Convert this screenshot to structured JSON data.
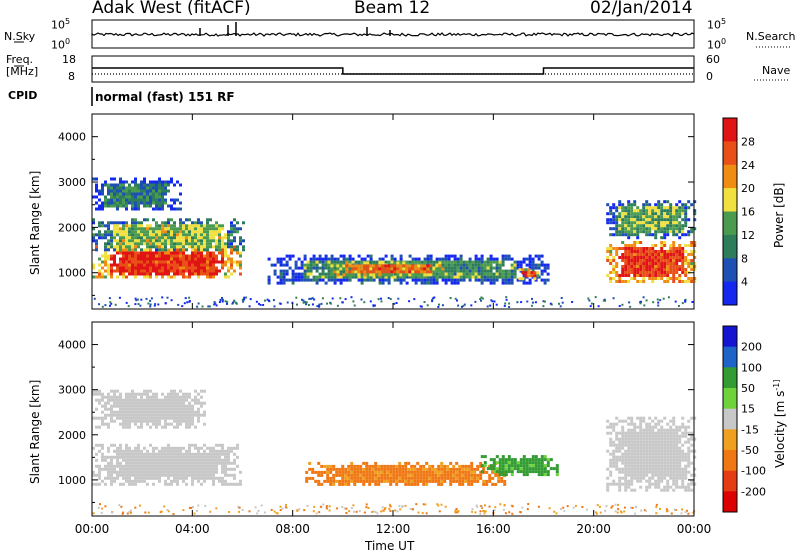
{
  "header": {
    "site": "Adak West (fitACF)",
    "beam": "Beam 12",
    "date": "02/Jan/2014"
  },
  "top_panels": {
    "nsky_label": "N.Sky",
    "nsky_top_tick": "10^5",
    "nsky_bottom_tick": "10^0",
    "nsearch_label": "N.Search",
    "nsearch_top_tick": "10^5",
    "nsearch_bottom_tick": "10^0",
    "freq_label": "Freq.",
    "freq_unit": "[MHz]",
    "freq_ticks": [
      "18",
      "8"
    ],
    "nave_label": "Nave",
    "nave_ticks": [
      "60",
      "0"
    ],
    "cpid_label": "CPID",
    "cpid_text": "normal (fast) 151 RF"
  },
  "chart_data": [
    {
      "type": "heatmap",
      "name": "power",
      "ylabel": "Slant Range [km]",
      "yticks": [
        "1000",
        "2000",
        "3000",
        "4000"
      ],
      "ylim": [
        200,
        4500
      ],
      "xlim": [
        0,
        24
      ],
      "colorbar_label": "Power [dB]",
      "colorbar_ticks": [
        "4",
        "8",
        "12",
        "16",
        "20",
        "24",
        "28"
      ],
      "colors": [
        "#1428f0",
        "#1e50b4",
        "#2e7d5a",
        "#4a9a50",
        "#f0e040",
        "#f08c14",
        "#e85018",
        "#e01414"
      ],
      "regions": [
        {
          "t0": 0.0,
          "t1": 5.9,
          "r0": 900,
          "r1": 1600,
          "level": 6.6
        },
        {
          "t0": 0.0,
          "t1": 6.0,
          "r0": 1500,
          "r1": 2200,
          "level": 3.5
        },
        {
          "t0": 0.0,
          "t1": 3.5,
          "r0": 2400,
          "r1": 3100,
          "level": 1.8
        },
        {
          "t0": 7.0,
          "t1": 18.2,
          "r0": 800,
          "r1": 1400,
          "level": 2.5
        },
        {
          "t0": 9.5,
          "t1": 14.0,
          "r0": 950,
          "r1": 1250,
          "level": 5.6
        },
        {
          "t0": 17.0,
          "t1": 17.8,
          "r0": 900,
          "r1": 1100,
          "level": 6.2
        },
        {
          "t0": 20.5,
          "t1": 24.0,
          "r0": 800,
          "r1": 1700,
          "level": 6.6
        },
        {
          "t0": 20.5,
          "t1": 24.0,
          "r0": 1800,
          "r1": 2600,
          "level": 3.0
        }
      ]
    },
    {
      "type": "heatmap",
      "name": "velocity",
      "ylabel": "Slant Range [km]",
      "yticks": [
        "1000",
        "2000",
        "3000",
        "4000"
      ],
      "ylim": [
        200,
        4500
      ],
      "xlim": [
        0,
        24
      ],
      "xticks": [
        "00:00",
        "04:00",
        "08:00",
        "12:00",
        "16:00",
        "20:00",
        "00:00"
      ],
      "xlabel": "Time UT",
      "colorbar_label": "Velocity [m s^-1]",
      "colorbar_ticks": [
        "200",
        "100",
        "50",
        "15",
        "-15",
        "-50",
        "-100",
        "-200"
      ],
      "colors": [
        "#1414d2",
        "#1e64c8",
        "#329b32",
        "#6ed23c",
        "#c8c8c8",
        "#f0a020",
        "#f07814",
        "#e63c14",
        "#dc0000"
      ],
      "regions": [
        {
          "t0": 0.0,
          "t1": 5.9,
          "r0": 900,
          "r1": 1800,
          "value": 0
        },
        {
          "t0": 0.0,
          "t1": 4.5,
          "r0": 2200,
          "r1": 3000,
          "value": 0
        },
        {
          "t0": 8.5,
          "t1": 16.5,
          "r0": 900,
          "r1": 1400,
          "value": -60
        },
        {
          "t0": 15.5,
          "t1": 18.5,
          "r0": 1150,
          "r1": 1550,
          "value": 40
        },
        {
          "t0": 20.5,
          "t1": 24.0,
          "r0": 800,
          "r1": 2400,
          "value": 0
        }
      ]
    }
  ]
}
